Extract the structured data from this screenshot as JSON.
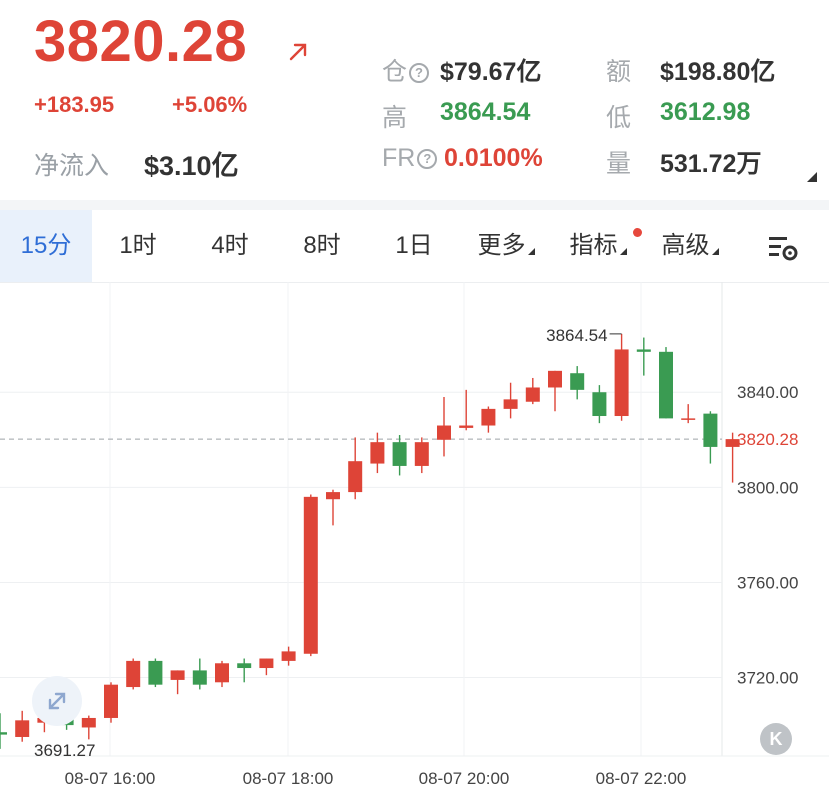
{
  "ticker": {
    "price": "3820.28",
    "change_abs": "+183.95",
    "change_pct": "+5.06%",
    "netflow_label": "净流入",
    "netflow_value": "$3.10亿",
    "up_color": "#de4437",
    "down_color": "#3a9b52"
  },
  "stats": {
    "open_interest_label": "仓",
    "open_interest_value": "$79.67亿",
    "turnover_label": "额",
    "turnover_value": "$198.80亿",
    "high_label": "高",
    "high_value": "3864.54",
    "low_label": "低",
    "low_value": "3612.98",
    "funding_label": "FR",
    "funding_value": "0.0100%",
    "volume_label": "量",
    "volume_value": "531.72万"
  },
  "tabs": [
    {
      "label": "15分",
      "active": true
    },
    {
      "label": "1时"
    },
    {
      "label": "4时"
    },
    {
      "label": "8时"
    },
    {
      "label": "1日"
    },
    {
      "label": "更多"
    },
    {
      "label": "指标"
    },
    {
      "label": "高级"
    }
  ],
  "icons": {
    "price_arrow": "arrow-up-right-icon",
    "chart_settings": "chart-settings-icon",
    "expand": "expand-icon",
    "k_button": "k-chart-icon"
  },
  "k_button_label": "K",
  "chart_data": {
    "type": "candlestick",
    "y_axis": {
      "ticks": [
        "3840.00",
        "3800.00",
        "3760.00",
        "3720.00"
      ],
      "tick_values": [
        3840,
        3800,
        3760,
        3720
      ],
      "ylim": [
        3687,
        3883
      ]
    },
    "x_axis": {
      "ticks": [
        "08-07 16:00",
        "08-07 18:00",
        "08-07 20:00",
        "08-07 22:00"
      ]
    },
    "current_price": {
      "value": 3820.28,
      "label": "3820.28"
    },
    "high_marker": {
      "value": 3864.54,
      "label": "3864.54"
    },
    "low_marker": {
      "value": 3691.27,
      "label": "3691.27"
    },
    "candles": [
      {
        "o": 3697,
        "h": 3705,
        "l": 3690,
        "c": 3696
      },
      {
        "o": 3695,
        "h": 3706,
        "l": 3693,
        "c": 3702
      },
      {
        "o": 3701,
        "h": 3708,
        "l": 3697,
        "c": 3703
      },
      {
        "o": 3705,
        "h": 3706,
        "l": 3698,
        "c": 3700
      },
      {
        "o": 3699,
        "h": 3704,
        "l": 3694,
        "c": 3703
      },
      {
        "o": 3703,
        "h": 3718,
        "l": 3701,
        "c": 3717
      },
      {
        "o": 3716,
        "h": 3728,
        "l": 3715,
        "c": 3727
      },
      {
        "o": 3727,
        "h": 3728,
        "l": 3716,
        "c": 3717
      },
      {
        "o": 3719,
        "h": 3723,
        "l": 3713,
        "c": 3723
      },
      {
        "o": 3723,
        "h": 3728,
        "l": 3715,
        "c": 3717
      },
      {
        "o": 3718,
        "h": 3727,
        "l": 3716,
        "c": 3726
      },
      {
        "o": 3726,
        "h": 3728,
        "l": 3718,
        "c": 3724
      },
      {
        "o": 3724,
        "h": 3728,
        "l": 3721,
        "c": 3728
      },
      {
        "o": 3727,
        "h": 3733,
        "l": 3725,
        "c": 3731
      },
      {
        "o": 3730,
        "h": 3797,
        "l": 3729,
        "c": 3796
      },
      {
        "o": 3795,
        "h": 3799,
        "l": 3784,
        "c": 3798
      },
      {
        "o": 3798,
        "h": 3821,
        "l": 3795,
        "c": 3811
      },
      {
        "o": 3810,
        "h": 3823,
        "l": 3806,
        "c": 3819
      },
      {
        "o": 3819,
        "h": 3822,
        "l": 3805,
        "c": 3809
      },
      {
        "o": 3809,
        "h": 3821,
        "l": 3806,
        "c": 3819
      },
      {
        "o": 3820,
        "h": 3838,
        "l": 3813,
        "c": 3826
      },
      {
        "o": 3825,
        "h": 3841,
        "l": 3824,
        "c": 3826
      },
      {
        "o": 3826,
        "h": 3834,
        "l": 3823,
        "c": 3833
      },
      {
        "o": 3833,
        "h": 3844,
        "l": 3829,
        "c": 3837
      },
      {
        "o": 3836,
        "h": 3846,
        "l": 3835,
        "c": 3842
      },
      {
        "o": 3842,
        "h": 3849,
        "l": 3832,
        "c": 3849
      },
      {
        "o": 3848,
        "h": 3851,
        "l": 3837,
        "c": 3841
      },
      {
        "o": 3840,
        "h": 3843,
        "l": 3827,
        "c": 3830
      },
      {
        "o": 3830,
        "h": 3864.54,
        "l": 3828,
        "c": 3858
      },
      {
        "o": 3858,
        "h": 3863,
        "l": 3847,
        "c": 3857
      },
      {
        "o": 3857,
        "h": 3859,
        "l": 3829,
        "c": 3829
      },
      {
        "o": 3829,
        "h": 3835,
        "l": 3827,
        "c": 3829
      },
      {
        "o": 3831,
        "h": 3832,
        "l": 3810,
        "c": 3817
      },
      {
        "o": 3817,
        "h": 3823,
        "l": 3802,
        "c": 3820.28
      }
    ]
  }
}
